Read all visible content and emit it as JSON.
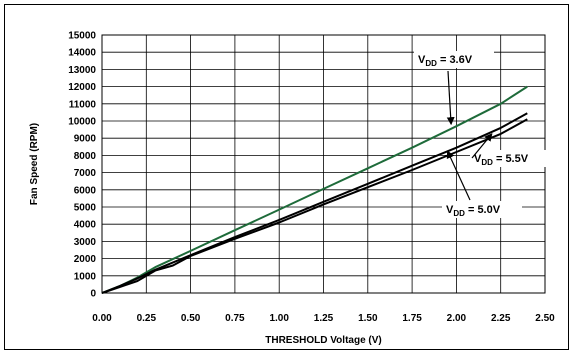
{
  "chart_data": {
    "type": "line",
    "title": "",
    "xlabel": "THRESHOLD Voltage (V)",
    "ylabel": "Fan Speed (RPM)",
    "xlim": [
      0,
      2.5
    ],
    "ylim": [
      0,
      15000
    ],
    "xticks": [
      "0.00",
      "0.25",
      "0.50",
      "0.75",
      "1.00",
      "1.25",
      "1.50",
      "1.75",
      "2.00",
      "2.25",
      "2.50"
    ],
    "yticks": [
      "0",
      "1000",
      "2000",
      "3000",
      "4000",
      "5000",
      "6000",
      "7000",
      "8000",
      "9000",
      "10000",
      "11000",
      "12000",
      "13000",
      "14000",
      "15000"
    ],
    "grid": true,
    "series": [
      {
        "name": "VDD = 3.6V",
        "label_main": "V",
        "label_sub": "DD",
        "label_tail": " = 3.6V",
        "color": "#1e6b3a",
        "x": [
          0.0,
          0.1,
          0.2,
          0.3,
          0.5,
          0.75,
          1.0,
          1.25,
          1.5,
          1.75,
          2.0,
          2.25,
          2.4
        ],
        "y": [
          0,
          400,
          900,
          1500,
          2450,
          3650,
          4850,
          6050,
          7250,
          8450,
          9700,
          11000,
          12000
        ]
      },
      {
        "name": "VDD = 5.5V",
        "label_main": "V",
        "label_sub": "DD",
        "label_tail": " = 5.5V",
        "color": "#000000",
        "x": [
          0.0,
          0.1,
          0.2,
          0.3,
          0.5,
          0.75,
          1.0,
          1.25,
          1.5,
          1.75,
          2.0,
          2.25,
          2.4
        ],
        "y": [
          0,
          400,
          850,
          1350,
          2200,
          3250,
          4250,
          5300,
          6350,
          7400,
          8450,
          9600,
          10450
        ]
      },
      {
        "name": "VDD = 5.0V",
        "label_main": "V",
        "label_sub": "DD",
        "label_tail": " = 5.0V",
        "color": "#000000",
        "x": [
          0.0,
          0.1,
          0.2,
          0.3,
          0.4,
          0.5,
          0.75,
          1.0,
          1.25,
          1.5,
          1.75,
          2.0,
          2.25,
          2.4
        ],
        "y": [
          0,
          350,
          700,
          1300,
          1600,
          2150,
          3150,
          4100,
          5150,
          6150,
          7150,
          8200,
          9250,
          10100
        ]
      }
    ]
  }
}
